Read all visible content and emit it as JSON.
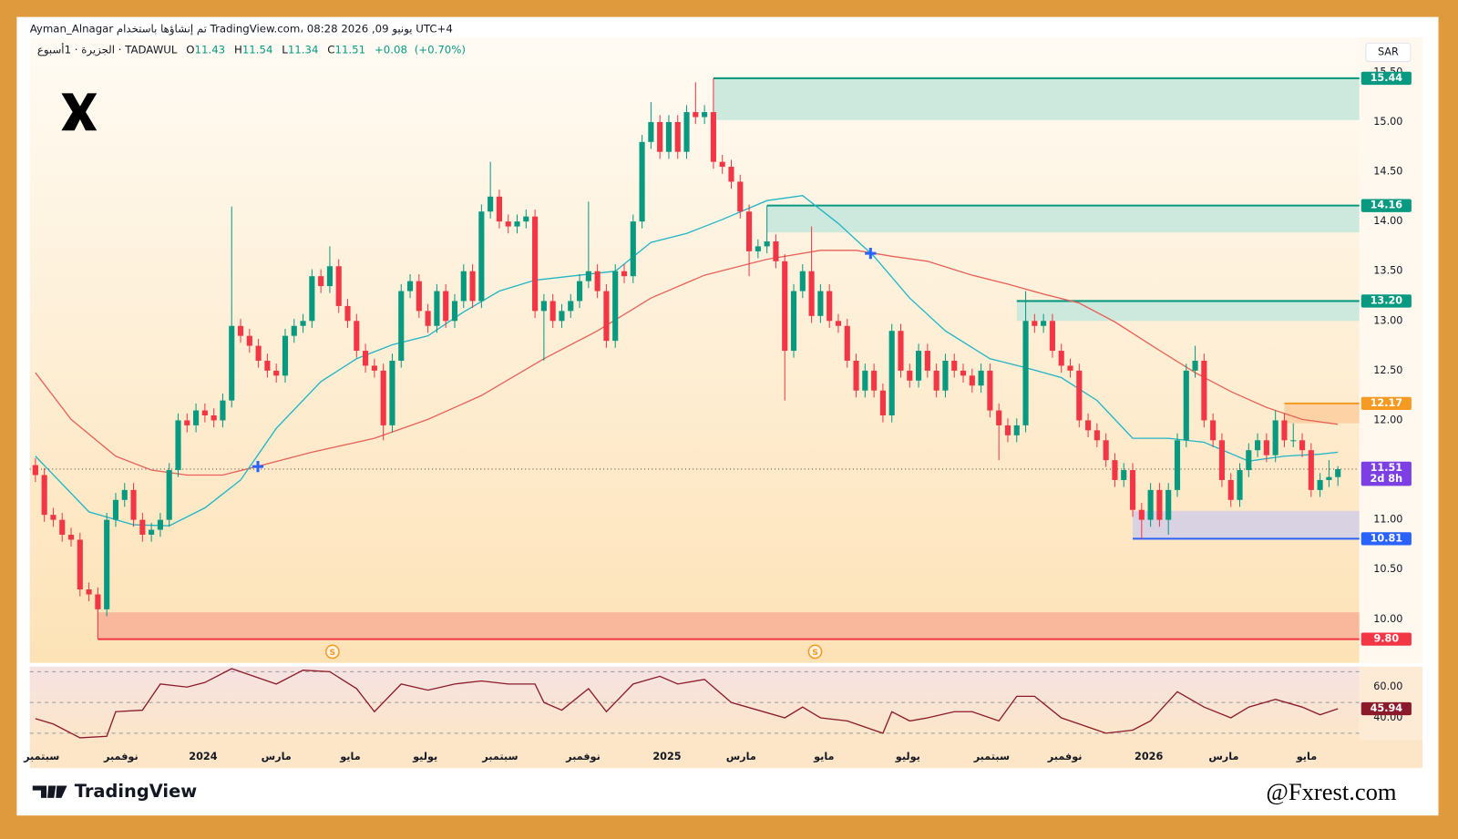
{
  "header": {
    "credit": "Ayman_Alnagar تم إنشاؤها باستخدام TradingView.com، 08:28 2026 ,09 يونيو UTC+4",
    "symbol": "الجزيرة · 1أسبوع · TADAWUL",
    "o": "O",
    "h": "H",
    "l": "L",
    "c": "C",
    "change": {
      "value": 0.08,
      "label": "+0.08"
    },
    "change_pct": {
      "value": 0.7,
      "label": "(+0.70%)"
    },
    "currency": "SAR"
  },
  "footer": {
    "brand": "TradingView",
    "watermark": "@Fxrest.com"
  },
  "chart_data": {
    "type": "candlestick",
    "up_color": "#089981",
    "down_color": "#f23645",
    "xlim": [
      -0.63,
      148.4
    ],
    "ylim": [
      9.58,
      15.57
    ],
    "xticks": [
      {
        "value": 0.7,
        "label": "سبتمبر"
      },
      {
        "value": 9.6,
        "label": "نوفمبر"
      },
      {
        "value": 18.8,
        "label": "2024"
      },
      {
        "value": 27.0,
        "label": "مارس"
      },
      {
        "value": 35.3,
        "label": "مايو"
      },
      {
        "value": 43.7,
        "label": "يوليو"
      },
      {
        "value": 52.1,
        "label": "سبتمبر"
      },
      {
        "value": 61.4,
        "label": "نوفمبر"
      },
      {
        "value": 70.8,
        "label": "2025"
      },
      {
        "value": 79.1,
        "label": "مارس"
      },
      {
        "value": 88.4,
        "label": "مايو"
      },
      {
        "value": 97.8,
        "label": "يوليو"
      },
      {
        "value": 107.2,
        "label": "سبتمبر"
      },
      {
        "value": 115.4,
        "label": "نوفمبر"
      },
      {
        "value": 124.8,
        "label": "2026"
      },
      {
        "value": 133.2,
        "label": "مارس"
      },
      {
        "value": 142.5,
        "label": "مايو"
      }
    ],
    "yticks": [
      {
        "value": 10,
        "label": "10.00"
      },
      {
        "value": 10.5,
        "label": "10.50"
      },
      {
        "value": 11,
        "label": "11.00"
      },
      {
        "value": 11.5,
        "label": "11.50"
      },
      {
        "value": 12,
        "label": "12.00"
      },
      {
        "value": 12.5,
        "label": "12.50"
      },
      {
        "value": 13,
        "label": "13.00"
      },
      {
        "value": 13.5,
        "label": "13.50"
      },
      {
        "value": 14,
        "label": "14.00"
      },
      {
        "value": 14.5,
        "label": "14.50"
      },
      {
        "value": 15,
        "label": "15.00"
      },
      {
        "value": 15.5,
        "label": "15.50"
      }
    ],
    "candles": [
      [
        11.55,
        11.62,
        11.38,
        11.45
      ],
      [
        11.45,
        11.52,
        10.98,
        11.05
      ],
      [
        11.05,
        11.12,
        10.93,
        11.0
      ],
      [
        11.0,
        11.07,
        10.78,
        10.85
      ],
      [
        10.85,
        10.92,
        10.73,
        10.8
      ],
      [
        10.8,
        10.87,
        10.23,
        10.3
      ],
      [
        10.3,
        10.37,
        10.18,
        10.25
      ],
      [
        10.25,
        10.32,
        9.8,
        10.1
      ],
      [
        10.1,
        11.07,
        10.03,
        11.0
      ],
      [
        11.0,
        11.27,
        10.93,
        11.2
      ],
      [
        11.2,
        11.37,
        11.13,
        11.3
      ],
      [
        11.3,
        11.37,
        10.93,
        11.0
      ],
      [
        11.0,
        11.07,
        10.78,
        10.85
      ],
      [
        10.85,
        10.97,
        10.78,
        10.9
      ],
      [
        10.9,
        11.07,
        10.83,
        11.0
      ],
      [
        11.0,
        11.57,
        10.93,
        11.5
      ],
      [
        11.5,
        12.07,
        11.43,
        12.0
      ],
      [
        12.0,
        12.07,
        11.88,
        11.95
      ],
      [
        11.95,
        12.17,
        11.88,
        12.1
      ],
      [
        12.1,
        12.17,
        11.98,
        12.05
      ],
      [
        12.05,
        12.12,
        11.93,
        12.0
      ],
      [
        12.0,
        12.27,
        11.93,
        12.2
      ],
      [
        12.2,
        14.15,
        12.13,
        12.95
      ],
      [
        12.95,
        13.02,
        12.78,
        12.85
      ],
      [
        12.85,
        12.92,
        12.68,
        12.75
      ],
      [
        12.75,
        12.82,
        12.53,
        12.6
      ],
      [
        12.6,
        12.67,
        12.43,
        12.5
      ],
      [
        12.5,
        12.57,
        12.38,
        12.45
      ],
      [
        12.45,
        12.92,
        12.38,
        12.85
      ],
      [
        12.85,
        13.02,
        12.78,
        12.95
      ],
      [
        12.95,
        13.07,
        12.88,
        13.0
      ],
      [
        13.0,
        13.52,
        12.93,
        13.45
      ],
      [
        13.45,
        13.52,
        13.28,
        13.35
      ],
      [
        13.35,
        13.75,
        13.28,
        13.55
      ],
      [
        13.55,
        13.62,
        13.08,
        13.15
      ],
      [
        13.15,
        13.22,
        12.93,
        13.0
      ],
      [
        13.0,
        13.07,
        12.63,
        12.7
      ],
      [
        12.7,
        12.77,
        12.48,
        12.55
      ],
      [
        12.55,
        12.62,
        12.43,
        12.5
      ],
      [
        12.5,
        12.57,
        11.8,
        11.95
      ],
      [
        11.95,
        12.67,
        11.88,
        12.6
      ],
      [
        12.6,
        13.37,
        12.53,
        13.3
      ],
      [
        13.3,
        13.47,
        13.23,
        13.4
      ],
      [
        13.4,
        13.47,
        13.03,
        13.1
      ],
      [
        13.1,
        13.17,
        12.88,
        12.95
      ],
      [
        12.95,
        13.37,
        12.88,
        13.3
      ],
      [
        13.3,
        13.37,
        12.93,
        13.0
      ],
      [
        13.0,
        13.27,
        12.93,
        13.2
      ],
      [
        13.2,
        13.57,
        13.13,
        13.5
      ],
      [
        13.5,
        13.57,
        13.13,
        13.2
      ],
      [
        13.2,
        14.17,
        13.13,
        14.1
      ],
      [
        14.1,
        14.6,
        14.03,
        14.25
      ],
      [
        14.25,
        14.32,
        13.93,
        14.0
      ],
      [
        14.0,
        14.07,
        13.88,
        13.95
      ],
      [
        13.95,
        14.07,
        13.88,
        14.0
      ],
      [
        14.0,
        14.12,
        13.93,
        14.05
      ],
      [
        14.05,
        14.12,
        13.03,
        13.1
      ],
      [
        13.1,
        13.27,
        12.6,
        13.2
      ],
      [
        13.2,
        13.27,
        12.93,
        13.0
      ],
      [
        13.0,
        13.17,
        12.93,
        13.1
      ],
      [
        13.1,
        13.27,
        13.03,
        13.2
      ],
      [
        13.2,
        13.47,
        13.13,
        13.4
      ],
      [
        13.4,
        14.2,
        13.33,
        13.5
      ],
      [
        13.5,
        13.57,
        13.23,
        13.3
      ],
      [
        13.3,
        13.37,
        12.73,
        12.8
      ],
      [
        12.8,
        13.57,
        12.73,
        13.5
      ],
      [
        13.5,
        13.57,
        13.38,
        13.45
      ],
      [
        13.45,
        14.07,
        13.38,
        14.0
      ],
      [
        14.0,
        14.87,
        13.93,
        14.8
      ],
      [
        14.8,
        15.2,
        14.73,
        15.0
      ],
      [
        15.0,
        15.07,
        14.63,
        14.7
      ],
      [
        14.7,
        15.07,
        14.63,
        15.0
      ],
      [
        15.0,
        15.07,
        14.63,
        14.7
      ],
      [
        14.7,
        15.17,
        14.63,
        15.1
      ],
      [
        15.1,
        15.4,
        14.98,
        15.05
      ],
      [
        15.05,
        15.17,
        14.98,
        15.1
      ],
      [
        15.1,
        15.44,
        14.53,
        14.6
      ],
      [
        14.6,
        14.67,
        14.48,
        14.55
      ],
      [
        14.55,
        14.62,
        14.33,
        14.4
      ],
      [
        14.4,
        14.47,
        14.03,
        14.1
      ],
      [
        14.1,
        14.17,
        13.45,
        13.7
      ],
      [
        13.7,
        13.82,
        13.63,
        13.75
      ],
      [
        13.75,
        14.16,
        13.68,
        13.8
      ],
      [
        13.8,
        13.87,
        13.53,
        13.6
      ],
      [
        13.6,
        13.67,
        12.2,
        12.7
      ],
      [
        12.7,
        13.37,
        12.63,
        13.3
      ],
      [
        13.3,
        13.57,
        13.23,
        13.5
      ],
      [
        13.5,
        13.95,
        12.98,
        13.05
      ],
      [
        13.05,
        13.37,
        12.98,
        13.3
      ],
      [
        13.3,
        13.37,
        12.93,
        13.0
      ],
      [
        13.0,
        13.07,
        12.88,
        12.95
      ],
      [
        12.95,
        13.02,
        12.53,
        12.6
      ],
      [
        12.6,
        12.67,
        12.23,
        12.3
      ],
      [
        12.3,
        12.57,
        12.23,
        12.5
      ],
      [
        12.5,
        12.57,
        12.23,
        12.3
      ],
      [
        12.3,
        12.37,
        11.98,
        12.05
      ],
      [
        12.05,
        12.97,
        11.98,
        12.9
      ],
      [
        12.9,
        12.97,
        12.43,
        12.5
      ],
      [
        12.5,
        12.57,
        12.33,
        12.4
      ],
      [
        12.4,
        12.77,
        12.33,
        12.7
      ],
      [
        12.7,
        12.77,
        12.43,
        12.5
      ],
      [
        12.5,
        12.57,
        12.23,
        12.3
      ],
      [
        12.3,
        12.67,
        12.23,
        12.6
      ],
      [
        12.6,
        12.67,
        12.43,
        12.5
      ],
      [
        12.5,
        12.57,
        12.38,
        12.45
      ],
      [
        12.45,
        12.52,
        12.28,
        12.35
      ],
      [
        12.35,
        12.57,
        12.28,
        12.5
      ],
      [
        12.5,
        12.57,
        12.03,
        12.1
      ],
      [
        12.1,
        12.17,
        11.6,
        11.95
      ],
      [
        11.95,
        12.02,
        11.78,
        11.85
      ],
      [
        11.85,
        12.02,
        11.78,
        11.95
      ],
      [
        11.95,
        13.3,
        11.88,
        13.0
      ],
      [
        13.0,
        13.07,
        12.88,
        12.95
      ],
      [
        12.95,
        13.07,
        12.88,
        13.0
      ],
      [
        13.0,
        13.07,
        12.63,
        12.7
      ],
      [
        12.7,
        12.77,
        12.48,
        12.55
      ],
      [
        12.55,
        12.62,
        12.43,
        12.5
      ],
      [
        12.5,
        12.57,
        11.93,
        12.0
      ],
      [
        12.0,
        12.07,
        11.83,
        11.9
      ],
      [
        11.9,
        11.97,
        11.73,
        11.8
      ],
      [
        11.8,
        11.87,
        11.53,
        11.6
      ],
      [
        11.6,
        11.67,
        11.33,
        11.4
      ],
      [
        11.4,
        11.57,
        11.33,
        11.5
      ],
      [
        11.5,
        11.57,
        11.03,
        11.1
      ],
      [
        11.1,
        11.17,
        10.81,
        11.0
      ],
      [
        11.0,
        11.37,
        10.93,
        11.3
      ],
      [
        11.3,
        11.37,
        10.93,
        11.0
      ],
      [
        11.0,
        11.37,
        10.85,
        11.3
      ],
      [
        11.3,
        11.87,
        11.23,
        11.8
      ],
      [
        11.8,
        12.57,
        11.73,
        12.5
      ],
      [
        12.5,
        12.75,
        12.43,
        12.6
      ],
      [
        12.6,
        12.67,
        11.93,
        12.0
      ],
      [
        12.0,
        12.07,
        11.73,
        11.8
      ],
      [
        11.8,
        11.87,
        11.33,
        11.4
      ],
      [
        11.4,
        11.47,
        11.13,
        11.2
      ],
      [
        11.2,
        11.57,
        11.13,
        11.5
      ],
      [
        11.5,
        11.77,
        11.43,
        11.7
      ],
      [
        11.7,
        11.87,
        11.63,
        11.8
      ],
      [
        11.8,
        11.87,
        11.58,
        11.65
      ],
      [
        11.65,
        12.1,
        11.58,
        12.0
      ],
      [
        12.0,
        12.07,
        11.73,
        11.8
      ],
      [
        11.8,
        11.97,
        11.73,
        11.8
      ],
      [
        11.8,
        11.87,
        11.63,
        11.7
      ],
      [
        11.7,
        11.77,
        11.23,
        11.3
      ],
      [
        11.3,
        11.47,
        11.23,
        11.4
      ],
      [
        11.4,
        11.6,
        11.33,
        11.43
      ],
      [
        11.43,
        11.54,
        11.34,
        11.51
      ]
    ],
    "countdown": "2d 8h",
    "last_color": "#7b3fe4",
    "ma_fast": {
      "color": "#22b5c8",
      "x": [
        0,
        6,
        11,
        15,
        19,
        23,
        27,
        32,
        36,
        40,
        44,
        48,
        52,
        56,
        61,
        65,
        69,
        73,
        77,
        82,
        86,
        90,
        94,
        98,
        102,
        107,
        111,
        115,
        119,
        123,
        127,
        131,
        136,
        140,
        144,
        146
      ],
      "values": [
        11.64,
        11.08,
        10.95,
        10.94,
        11.12,
        11.4,
        11.92,
        12.39,
        12.62,
        12.76,
        12.85,
        13.09,
        13.3,
        13.41,
        13.46,
        13.5,
        13.79,
        13.88,
        14.02,
        14.21,
        14.26,
        13.98,
        13.65,
        13.23,
        12.9,
        12.62,
        12.53,
        12.43,
        12.2,
        11.82,
        11.82,
        11.78,
        11.59,
        11.64,
        11.66,
        11.68
      ]
    },
    "ma_slow": {
      "color": "#e8625a",
      "x": [
        0,
        4,
        9,
        13,
        17,
        21,
        25,
        31,
        38,
        44,
        50,
        57,
        63,
        69,
        75,
        82,
        88,
        92,
        96,
        100,
        105,
        109,
        113,
        117,
        121,
        125,
        130,
        134,
        138,
        142,
        146
      ],
      "values": [
        12.48,
        12.01,
        11.64,
        11.5,
        11.45,
        11.45,
        11.54,
        11.68,
        11.82,
        12.01,
        12.25,
        12.62,
        12.9,
        13.23,
        13.46,
        13.62,
        13.71,
        13.71,
        13.65,
        13.6,
        13.46,
        13.37,
        13.27,
        13.18,
        12.99,
        12.76,
        12.48,
        12.29,
        12.13,
        12.01,
        11.96
      ]
    },
    "zones": [
      {
        "level": 15.44,
        "edge": 15.02,
        "start": 76,
        "fill": "#cde8dc",
        "line": "#089981",
        "badge": "#089981",
        "badge_text": "#ffffff"
      },
      {
        "level": 14.16,
        "edge": 13.89,
        "start": 82,
        "fill": "#cde8dc",
        "line": "#089981",
        "badge": "#089981",
        "badge_text": "#ffffff"
      },
      {
        "level": {
          "value": 13.2,
          "label": "13.20"
        },
        "edge": 13.0,
        "start": 110,
        "fill": "#cde8dc",
        "line": "#089981",
        "badge": "#089981",
        "badge_text": "#ffffff"
      },
      {
        "level": 12.17,
        "edge": 11.97,
        "start": 140,
        "fill": "#fdd3a6",
        "line": "#f59a23",
        "badge": "#f59a23",
        "badge_text": "#131722"
      },
      {
        "level": 10.81,
        "edge": 11.09,
        "start": 123,
        "fill": "#d8d2e2",
        "line": "#2962ff",
        "badge": "#2962ff",
        "badge_text": "#ffffff"
      },
      {
        "level": {
          "value": 9.8,
          "label": "9.80"
        },
        "edge": 10.07,
        "start": 7,
        "fill": "#f9b89c",
        "line": "#f23645",
        "badge": "#f23645",
        "badge_text": "#ffffff"
      }
    ],
    "dividends": {
      "x": [
        33.3,
        87.4
      ],
      "label": "S"
    },
    "rsi": {
      "color": "#8b1a2a",
      "ylim": [
        25.5,
        72.1
      ],
      "yticks": [
        {
          "value": 60,
          "label": "60.00"
        },
        {
          "value": 40,
          "label": "40.00"
        }
      ],
      "levels": [
        70,
        50,
        30
      ],
      "x": [
        0,
        2,
        5,
        8,
        9,
        12,
        14,
        17,
        19,
        22,
        25,
        27,
        30,
        33,
        36,
        38,
        41,
        44,
        47,
        50,
        53,
        56,
        57,
        59,
        62,
        64,
        67,
        70,
        72,
        75,
        78,
        81,
        84,
        86,
        88,
        91,
        95,
        96,
        98,
        100,
        103,
        105,
        108,
        110,
        112,
        115,
        118,
        120,
        123,
        125,
        128,
        131,
        134,
        136,
        139,
        142,
        144,
        146
      ],
      "values": [
        39.5,
        36,
        27,
        28,
        44,
        45,
        62,
        60,
        63,
        72,
        66,
        62,
        71,
        70,
        59,
        44,
        62,
        58,
        62,
        64,
        62,
        62,
        50,
        45,
        59,
        44,
        62,
        67,
        62,
        65,
        50,
        45,
        40,
        47,
        40,
        38,
        30,
        44,
        38,
        40,
        44,
        44,
        38,
        54,
        54,
        40,
        34,
        30,
        32,
        38,
        57,
        47,
        40,
        47,
        52,
        47,
        42,
        45.94
      ]
    }
  }
}
